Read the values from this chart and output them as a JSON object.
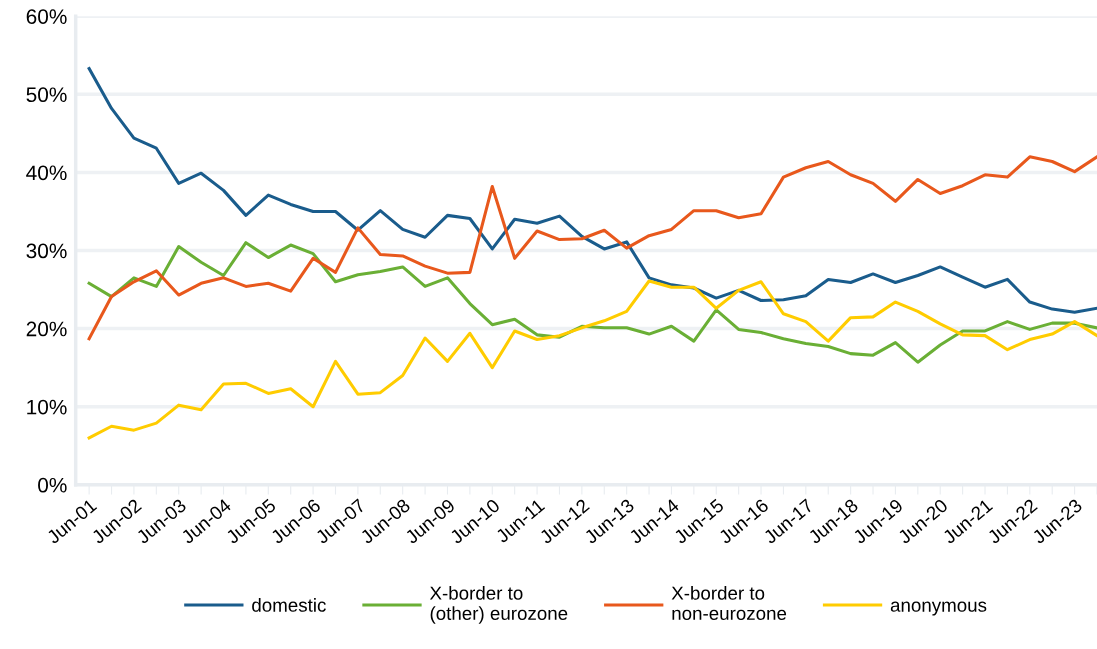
{
  "chart_data": {
    "type": "line",
    "categories": [
      "Jun-01",
      null,
      "Jun-02",
      null,
      "Jun-03",
      null,
      "Jun-04",
      null,
      "Jun-05",
      null,
      "Jun-06",
      null,
      "Jun-07",
      null,
      "Jun-08",
      null,
      "Jun-09",
      null,
      "Jun-10",
      null,
      "Jun-11",
      null,
      "Jun-12",
      null,
      "Jun-13",
      null,
      "Jun-14",
      null,
      "Jun-15",
      null,
      "Jun-16",
      null,
      "Jun-17",
      null,
      "Jun-18",
      null,
      "Jun-19",
      null,
      "Jun-20",
      null,
      "Jun-21",
      null,
      "Jun-22",
      null,
      "Jun-23",
      null
    ],
    "series": [
      {
        "name": "domestic",
        "color": "#1a5c8c",
        "values": [
          53.3,
          48.2,
          44.4,
          43.1,
          38.6,
          39.9,
          37.7,
          34.5,
          37.1,
          35.9,
          35.0,
          35.0,
          32.6,
          35.1,
          32.7,
          31.7,
          34.5,
          34.1,
          30.2,
          34.0,
          33.5,
          34.4,
          31.8,
          30.2,
          31.1,
          26.5,
          25.6,
          25.2,
          23.9,
          24.9,
          23.6,
          23.7,
          24.2,
          26.3,
          25.9,
          27.0,
          25.9,
          26.8,
          27.9,
          26.6,
          25.3,
          26.3,
          23.4,
          22.5,
          22.1,
          22.6
        ]
      },
      {
        "name": "X-border to\n(other) eurozone",
        "color": "#6aaf35",
        "values": [
          25.8,
          24.1,
          26.5,
          25.4,
          30.5,
          28.5,
          26.8,
          31.0,
          29.1,
          30.7,
          29.6,
          26.0,
          26.9,
          27.3,
          27.9,
          25.4,
          26.5,
          23.2,
          20.5,
          21.2,
          19.2,
          18.9,
          20.3,
          20.1,
          20.1,
          19.3,
          20.3,
          18.4,
          22.4,
          19.9,
          19.5,
          18.7,
          18.1,
          17.7,
          16.8,
          16.6,
          18.2,
          15.7,
          17.9,
          19.7,
          19.7,
          20.9,
          19.9,
          20.7,
          20.7,
          20.1
        ]
      },
      {
        "name": "X-border to\nnon-eurozone",
        "color": "#e8581c",
        "values": [
          18.7,
          24.1,
          26.0,
          27.4,
          24.3,
          25.8,
          26.5,
          25.4,
          25.8,
          24.8,
          29.0,
          27.2,
          32.9,
          29.5,
          29.3,
          28.0,
          27.1,
          27.2,
          38.2,
          29.0,
          32.5,
          31.4,
          31.5,
          32.6,
          30.3,
          31.9,
          32.7,
          35.1,
          35.1,
          34.2,
          34.7,
          39.4,
          40.6,
          41.4,
          39.7,
          38.6,
          36.3,
          39.1,
          37.3,
          38.3,
          39.7,
          39.4,
          42.0,
          41.4,
          40.1,
          42.0
        ]
      },
      {
        "name": "anonymous",
        "color": "#ffcc00",
        "values": [
          6.0,
          7.5,
          7.0,
          7.9,
          10.2,
          9.6,
          12.9,
          13.0,
          11.7,
          12.3,
          10.0,
          15.8,
          11.6,
          11.8,
          14.0,
          18.8,
          15.8,
          19.4,
          15.0,
          19.7,
          18.6,
          19.1,
          20.1,
          21.0,
          22.2,
          26.1,
          25.3,
          25.3,
          22.6,
          24.9,
          26.0,
          21.9,
          20.9,
          18.4,
          21.4,
          21.5,
          23.4,
          22.2,
          20.6,
          19.2,
          19.1,
          17.3,
          18.6,
          19.3,
          20.9,
          19.1
        ]
      }
    ],
    "ylim": [
      0,
      60
    ],
    "yticks": [
      {
        "value": 0,
        "label": "0%"
      },
      {
        "value": 10,
        "label": "10%"
      },
      {
        "value": 20,
        "label": "20%"
      },
      {
        "value": 30,
        "label": "30%"
      },
      {
        "value": 40,
        "label": "40%"
      },
      {
        "value": 50,
        "label": "50%"
      },
      {
        "value": 60,
        "label": "60%"
      }
    ],
    "grid": "y",
    "legend": "bottom",
    "marker": "none",
    "line_style": "solid"
  }
}
